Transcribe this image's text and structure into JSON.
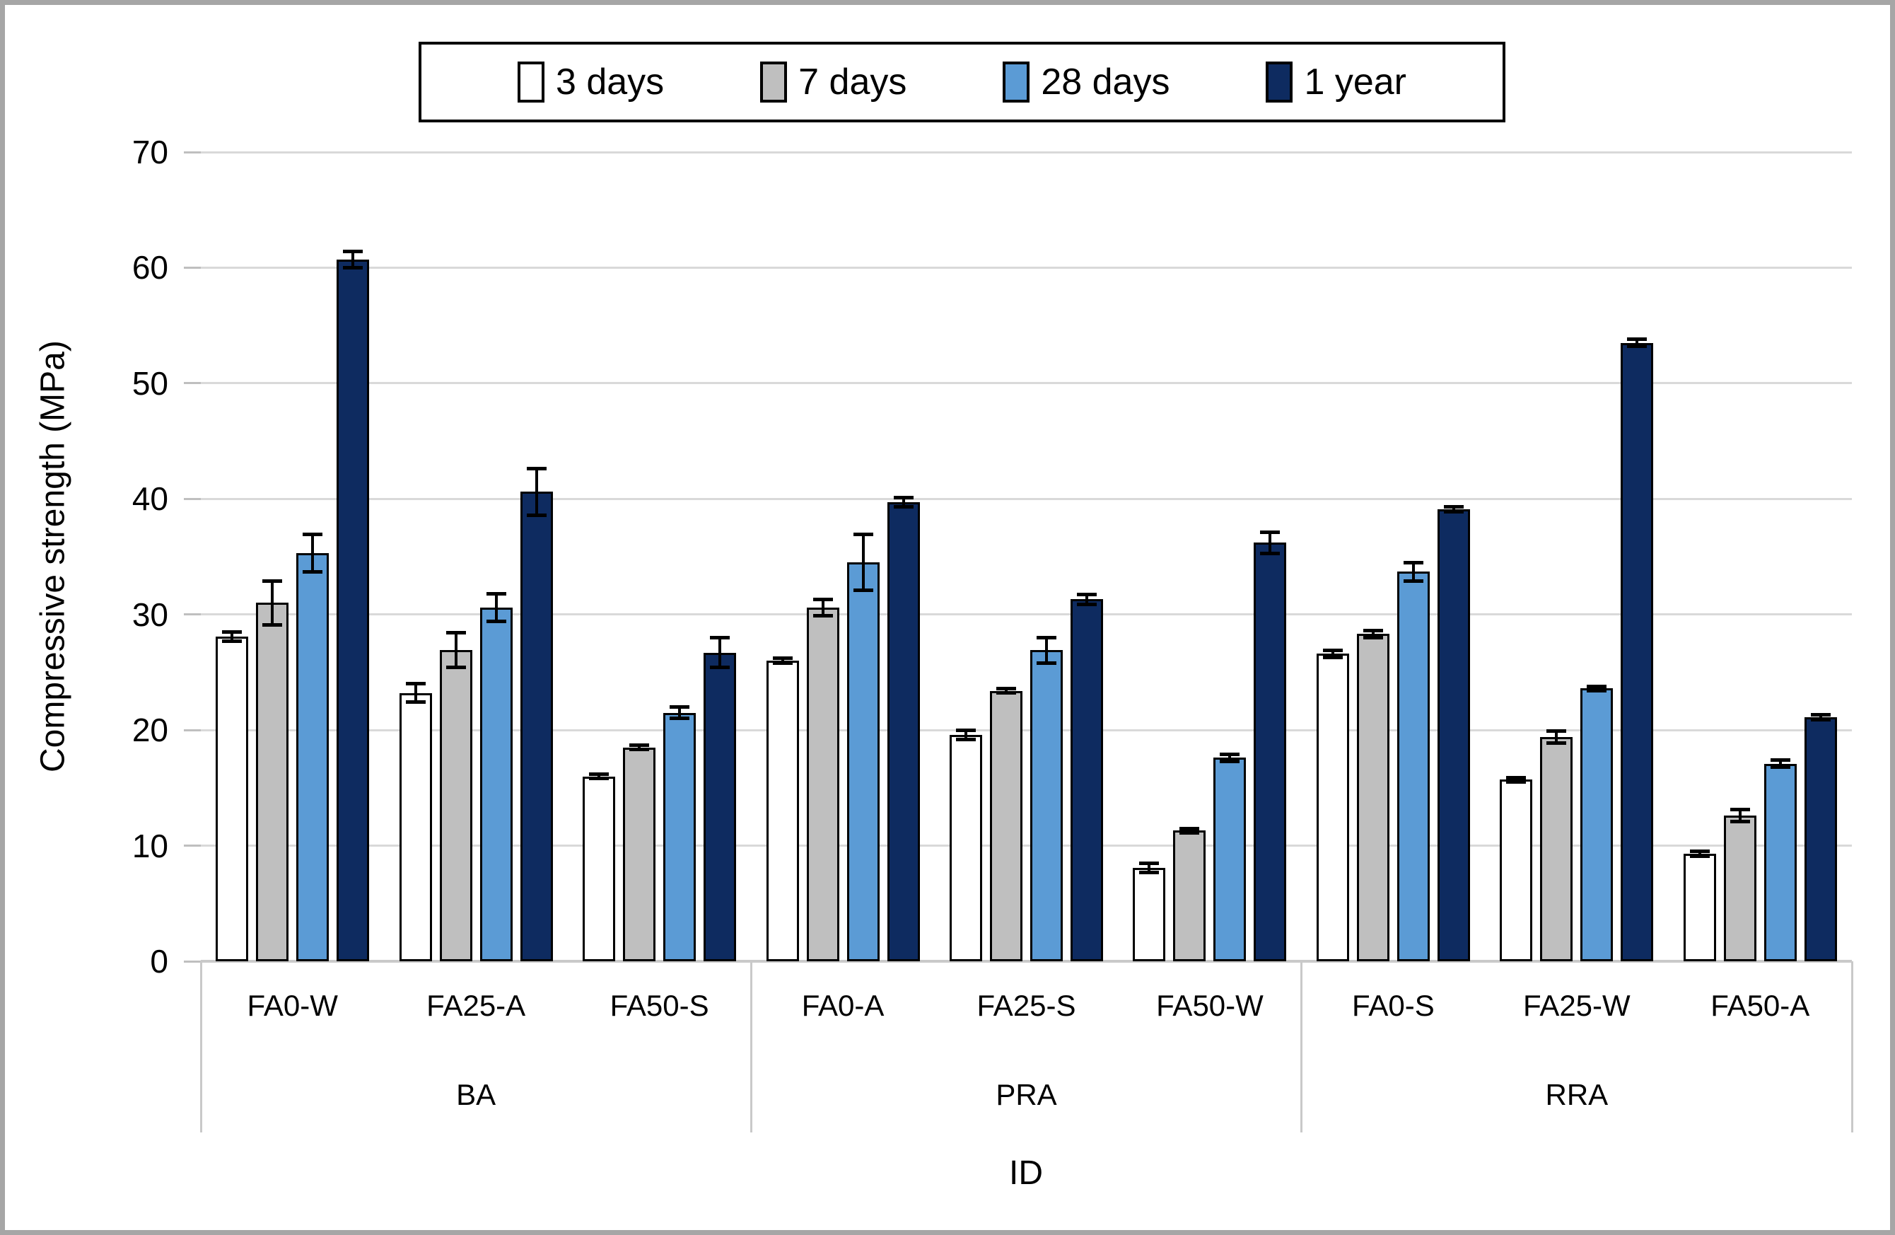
{
  "colors": {
    "series_3_days": "#FFFFFF",
    "series_7_days": "#BFBFBF",
    "series_28_days": "#5B9BD5",
    "series_1_year": "#0E2B60",
    "bar_outline": "#000000",
    "gridline": "#D9D9D9",
    "axis_line": "#C9C9C9",
    "outer_border": "#A6A6A6",
    "text": "#000000"
  },
  "chart_data": {
    "type": "bar",
    "title": "",
    "ylabel": "Compressive strength (MPa)",
    "xlabel": "ID",
    "ylim": [
      0,
      70
    ],
    "yticks": [
      0,
      10,
      20,
      30,
      40,
      50,
      60,
      70
    ],
    "grid": "horizontal",
    "legend_position": "top",
    "error_bars": true,
    "series": [
      {
        "name": "3 days",
        "fill": "#FFFFFF"
      },
      {
        "name": "7 days",
        "fill": "#BFBFBF"
      },
      {
        "name": "28 days",
        "fill": "#5B9BD5"
      },
      {
        "name": "1 year",
        "fill": "#0E2B60"
      }
    ],
    "groups": [
      {
        "label": "BA",
        "mixes": [
          {
            "id": "FA0-W",
            "values": [
              28.1,
              31.0,
              35.3,
              60.7
            ],
            "errors": [
              0.4,
              1.9,
              1.6,
              0.7
            ]
          },
          {
            "id": "FA25-A",
            "values": [
              23.2,
              26.9,
              30.6,
              40.6
            ],
            "errors": [
              0.8,
              1.5,
              1.2,
              2.0
            ]
          },
          {
            "id": "FA50-S",
            "values": [
              16.0,
              18.5,
              21.5,
              26.7
            ],
            "errors": [
              0.2,
              0.2,
              0.5,
              1.3
            ]
          }
        ]
      },
      {
        "label": "PRA",
        "mixes": [
          {
            "id": "FA0-A",
            "values": [
              26.0,
              30.6,
              34.5,
              39.7
            ],
            "errors": [
              0.2,
              0.7,
              2.4,
              0.4
            ]
          },
          {
            "id": "FA25-S",
            "values": [
              19.6,
              23.4,
              26.9,
              31.3
            ],
            "errors": [
              0.4,
              0.2,
              1.1,
              0.4
            ]
          },
          {
            "id": "FA50-W",
            "values": [
              8.1,
              11.3,
              17.6,
              36.2
            ],
            "errors": [
              0.4,
              0.2,
              0.3,
              0.9
            ]
          }
        ]
      },
      {
        "label": "RRA",
        "mixes": [
          {
            "id": "FA0-S",
            "values": [
              26.6,
              28.3,
              33.7,
              39.1
            ],
            "errors": [
              0.3,
              0.3,
              0.8,
              0.2
            ]
          },
          {
            "id": "FA25-W",
            "values": [
              15.7,
              19.4,
              23.6,
              53.5
            ],
            "errors": [
              0.2,
              0.5,
              0.2,
              0.3
            ]
          },
          {
            "id": "FA50-A",
            "values": [
              9.3,
              12.6,
              17.1,
              21.1
            ],
            "errors": [
              0.2,
              0.5,
              0.3,
              0.2
            ]
          }
        ]
      }
    ]
  }
}
